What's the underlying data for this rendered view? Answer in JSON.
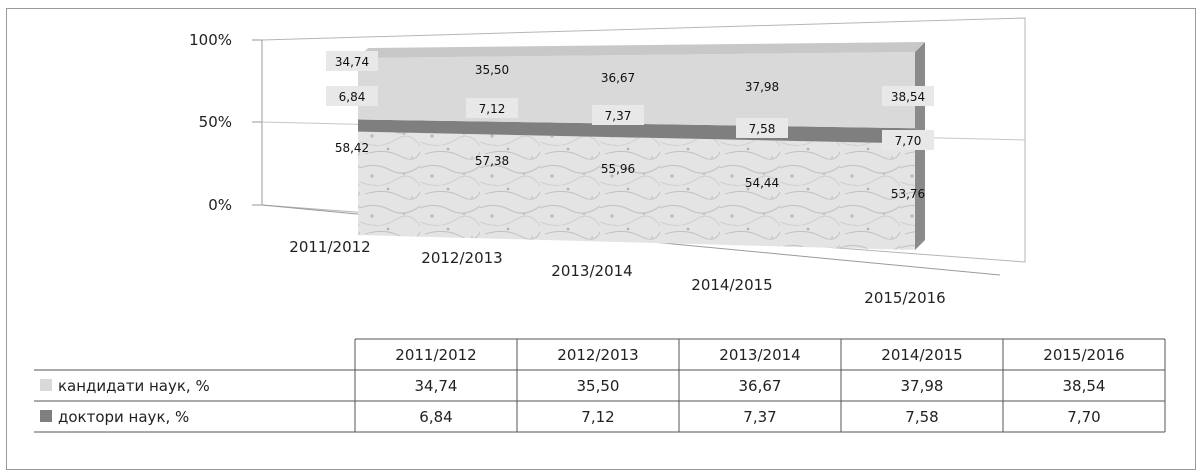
{
  "chart_data": {
    "type": "bar",
    "stacked": true,
    "percent": true,
    "three_d": true,
    "categories": [
      "2011/2012",
      "2012/2013",
      "2013/2014",
      "2014/2015",
      "2015/2016"
    ],
    "series": [
      {
        "name": "",
        "values": [
          58.42,
          57.38,
          55.96,
          54.44,
          53.76
        ],
        "labels": [
          "58,42",
          "57,38",
          "55,96",
          "54,44",
          "53,76"
        ],
        "color": "#d8d8d8"
      },
      {
        "name": "доктори наук, %",
        "values": [
          6.84,
          7.12,
          7.37,
          7.58,
          7.7
        ],
        "labels": [
          "6,84",
          "7,12",
          "7,37",
          "7,58",
          "7,70"
        ],
        "color": "#7f7f7f"
      },
      {
        "name": "кандидати наук, %",
        "values": [
          34.74,
          35.5,
          36.67,
          37.98,
          38.54
        ],
        "labels": [
          "34,74",
          "35,50",
          "36,67",
          "37,98",
          "38,54"
        ],
        "color": "#d9d9d9"
      }
    ],
    "y_ticks": [
      "0%",
      "50%",
      "100%"
    ],
    "ylim": [
      0,
      100
    ],
    "title": "",
    "xlabel": "",
    "ylabel": "",
    "legend": "table-below"
  },
  "table": {
    "headers": [
      "2011/2012",
      "2012/2013",
      "2013/2014",
      "2014/2015",
      "2015/2016"
    ],
    "rows": [
      {
        "label": "кандидати наук, %",
        "values": [
          "34,74",
          "35,50",
          "36,67",
          "37,98",
          "38,54"
        ],
        "color": "#d9d9d9"
      },
      {
        "label": "доктори наук, %",
        "values": [
          "6,84",
          "7,12",
          "7,37",
          "7,58",
          "7,70"
        ],
        "color": "#7f7f7f"
      }
    ]
  }
}
